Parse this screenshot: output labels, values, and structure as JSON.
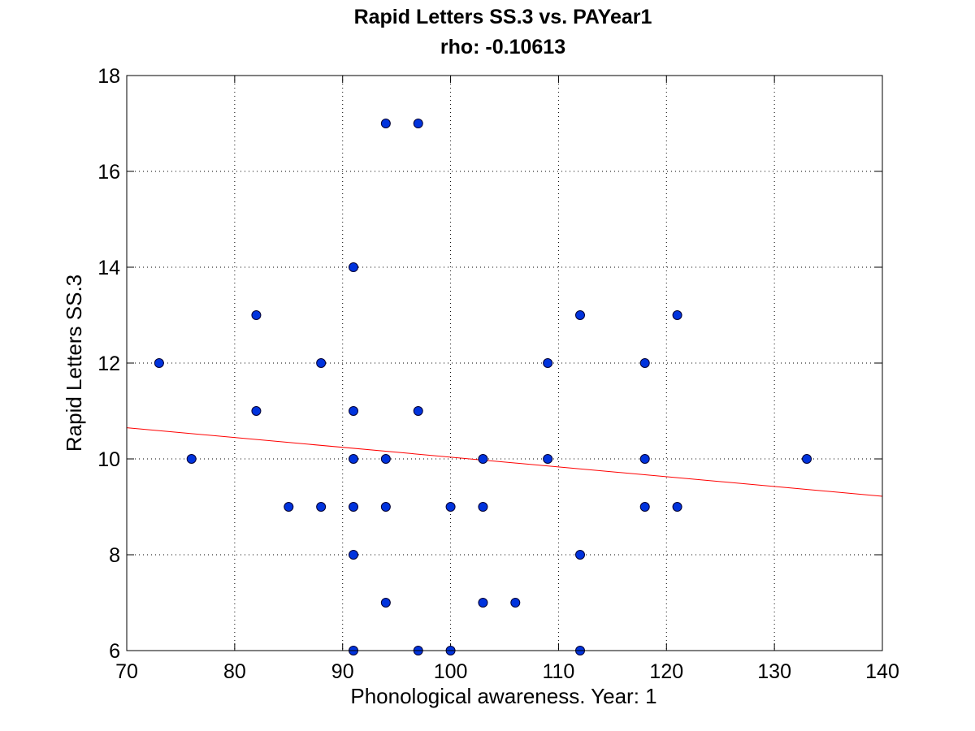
{
  "chart_data": {
    "type": "scatter",
    "title": "Rapid Letters SS.3 vs. PAYear1",
    "subtitle": "rho: -0.10613",
    "xlabel": "Phonological awareness. Year: 1",
    "ylabel": "Rapid Letters SS.3",
    "xlim": [
      70,
      140
    ],
    "ylim": [
      6,
      18
    ],
    "xticks": [
      70,
      80,
      90,
      100,
      110,
      120,
      130,
      140
    ],
    "yticks": [
      6,
      8,
      10,
      12,
      14,
      16,
      18
    ],
    "grid": true,
    "point_color": "#0033dd",
    "point_edge_color": "#000033",
    "fit_line_color": "#ff0000",
    "fit_line": {
      "x": [
        70,
        140
      ],
      "y": [
        10.65,
        9.22
      ]
    },
    "points": [
      {
        "x": 73,
        "y": 12
      },
      {
        "x": 76,
        "y": 10
      },
      {
        "x": 82,
        "y": 13
      },
      {
        "x": 82,
        "y": 11
      },
      {
        "x": 85,
        "y": 9
      },
      {
        "x": 88,
        "y": 12
      },
      {
        "x": 88,
        "y": 9
      },
      {
        "x": 91,
        "y": 14
      },
      {
        "x": 91,
        "y": 11
      },
      {
        "x": 91,
        "y": 10
      },
      {
        "x": 91,
        "y": 9
      },
      {
        "x": 91,
        "y": 8
      },
      {
        "x": 91,
        "y": 6
      },
      {
        "x": 94,
        "y": 17
      },
      {
        "x": 94,
        "y": 10
      },
      {
        "x": 94,
        "y": 9
      },
      {
        "x": 94,
        "y": 7
      },
      {
        "x": 97,
        "y": 17
      },
      {
        "x": 97,
        "y": 11
      },
      {
        "x": 97,
        "y": 6
      },
      {
        "x": 100,
        "y": 9
      },
      {
        "x": 100,
        "y": 6
      },
      {
        "x": 103,
        "y": 10
      },
      {
        "x": 103,
        "y": 9
      },
      {
        "x": 103,
        "y": 7
      },
      {
        "x": 106,
        "y": 7
      },
      {
        "x": 109,
        "y": 12
      },
      {
        "x": 109,
        "y": 10
      },
      {
        "x": 112,
        "y": 13
      },
      {
        "x": 112,
        "y": 8
      },
      {
        "x": 112,
        "y": 6
      },
      {
        "x": 118,
        "y": 12
      },
      {
        "x": 118,
        "y": 10
      },
      {
        "x": 118,
        "y": 9
      },
      {
        "x": 121,
        "y": 13
      },
      {
        "x": 121,
        "y": 9
      },
      {
        "x": 133,
        "y": 10
      }
    ]
  }
}
